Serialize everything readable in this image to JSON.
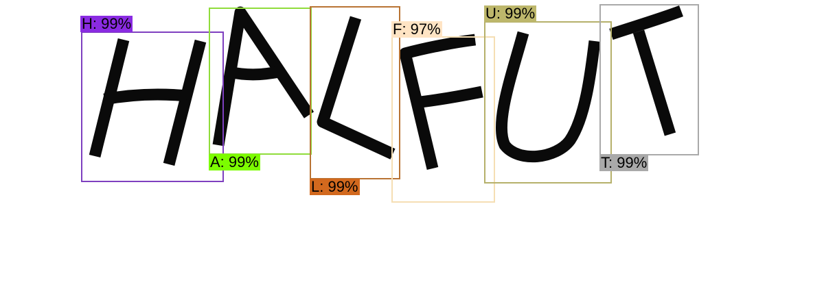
{
  "detections": [
    {
      "label": "H: 99%",
      "box_color": "#7e3fbf",
      "label_bg": "#8a2be2"
    },
    {
      "label": "A: 99%",
      "box_color": "#8fdc3a",
      "label_bg": "#7cfc00"
    },
    {
      "label": "L: 99%",
      "box_color": "#b87333",
      "label_bg": "#d2691e"
    },
    {
      "label": "F: 97%",
      "box_color": "#f5deb3",
      "label_bg": "#ffe4c4"
    },
    {
      "label": "U: 99%",
      "box_color": "#b5b06a",
      "label_bg": "#bdb76b"
    },
    {
      "label": "T: 99%",
      "box_color": "#a9a9a9",
      "label_bg": "#a9a9a9"
    }
  ]
}
